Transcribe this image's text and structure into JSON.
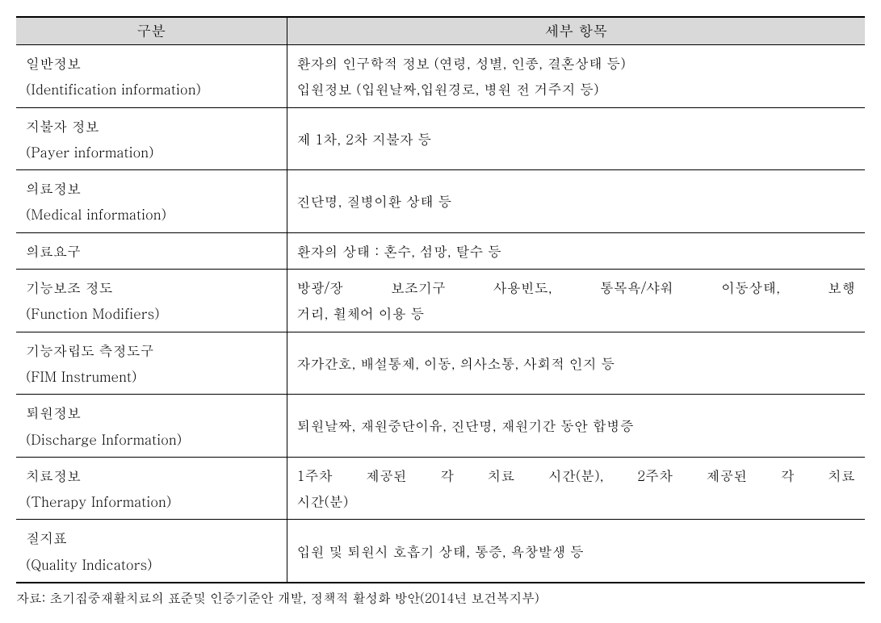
{
  "table": {
    "header": {
      "col1": "구분",
      "col2": "세부 항목"
    },
    "rows": [
      {
        "leftLine1": "일반정보",
        "leftLine2": "(Identification information)",
        "rightLine1": "환자의 인구학적 정보 (연령, 성별, 인종, 결혼상태 등)",
        "rightLine2": "입원정보 (입원날짜,입원경로, 병원 전 거주지 등)"
      },
      {
        "leftLine1": "지불자 정보",
        "leftLine2": "(Payer information)",
        "right": "제 1차, 2차 지불자 등"
      },
      {
        "leftLine1": "의료정보",
        "leftLine2": "(Medical information)",
        "right": "진단명, 질병이환 상태 등"
      },
      {
        "leftLine1": "의료요구",
        "right": "환자의 상태 : 혼수, 섬망, 탈수 등"
      },
      {
        "leftLine1": "기능보조 정도",
        "leftLine2": "(Function Modifiers)",
        "rightLine1": "방광/장 보조기구 사용빈도, 통목욕/샤워 이동상태, 보행",
        "rightLine2": "거리, 휠체어 이용 등",
        "rightJustify": true
      },
      {
        "leftLine1": "기능자립도 측정도구",
        "leftLine2": "(FIM Instrument)",
        "right": "자가간호, 배설통제, 이동, 의사소통, 사회적 인지 등"
      },
      {
        "leftLine1": "퇴원정보",
        "leftLine2": "(Discharge Information)",
        "right": "퇴원날짜, 재원중단이유, 진단명, 재원기간 동안 합병증"
      },
      {
        "leftLine1": "치료정보",
        "leftLine2": "(Therapy Information)",
        "rightLine1": "1주차 제공된 각 치료 시간(분), 2주차 제공된 각 치료",
        "rightLine2": "시간(분)",
        "rightJustify": true
      },
      {
        "leftLine1": "질지표",
        "leftLine2": "(Quality Indicators)",
        "right": "입원 및 퇴원시 호흡기 상태, 통증, 욕창발생 등"
      }
    ]
  },
  "sourceNote": "자료: 초기집중재활치료의 표준및 인증기준안 개발, 정책적 활성화 방안(2014년 보건복지부)"
}
